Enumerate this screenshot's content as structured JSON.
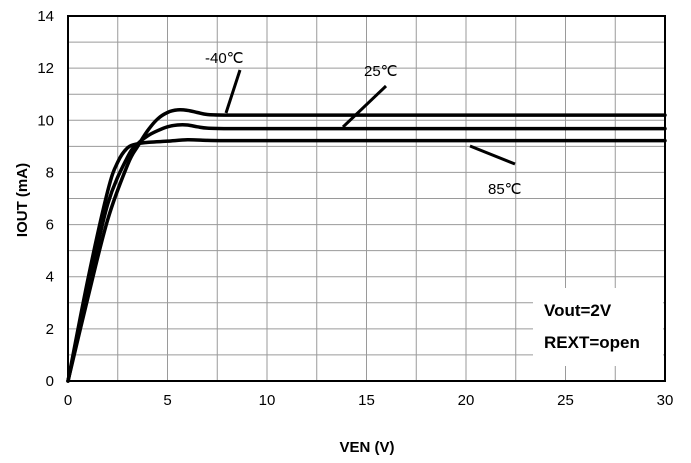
{
  "chart_data": {
    "type": "line",
    "xlabel": "VEN (V)",
    "ylabel": "IOUT (mA)",
    "xlim": [
      0,
      30
    ],
    "ylim": [
      0,
      14
    ],
    "xticks": [
      0,
      5,
      10,
      15,
      20,
      25,
      30
    ],
    "yticks": [
      0,
      2,
      4,
      6,
      8,
      10,
      12,
      14
    ],
    "grid": true,
    "series": [
      {
        "name": "-40℃",
        "x": [
          0,
          1,
          2,
          3,
          3.5,
          4,
          4.5,
          5,
          5.5,
          6,
          6.5,
          7,
          8,
          10,
          15,
          20,
          25,
          30
        ],
        "y": [
          0,
          3.2,
          6.2,
          8.3,
          9.0,
          9.6,
          10.05,
          10.3,
          10.4,
          10.38,
          10.3,
          10.22,
          10.2,
          10.2,
          10.2,
          10.2,
          10.2,
          10.2
        ]
      },
      {
        "name": "25℃",
        "x": [
          0,
          1,
          2,
          3,
          3.5,
          4,
          4.5,
          5,
          5.5,
          6,
          6.5,
          7,
          8,
          10,
          15,
          20,
          25,
          30
        ],
        "y": [
          0,
          3.5,
          6.8,
          8.6,
          9.1,
          9.4,
          9.6,
          9.75,
          9.82,
          9.82,
          9.75,
          9.7,
          9.68,
          9.68,
          9.68,
          9.68,
          9.68,
          9.68
        ]
      },
      {
        "name": "85℃",
        "x": [
          0,
          1,
          2,
          2.5,
          3,
          3.5,
          4,
          5,
          6,
          7,
          8,
          10,
          15,
          20,
          25,
          30
        ],
        "y": [
          0,
          3.9,
          7.3,
          8.4,
          8.95,
          9.1,
          9.15,
          9.2,
          9.25,
          9.23,
          9.22,
          9.22,
          9.22,
          9.22,
          9.22,
          9.22
        ]
      }
    ],
    "annotations": {
      "series_labels": [
        "-40℃",
        "25℃",
        "85℃"
      ],
      "conditions": [
        "Vout=2V",
        "REXT=open"
      ]
    }
  }
}
